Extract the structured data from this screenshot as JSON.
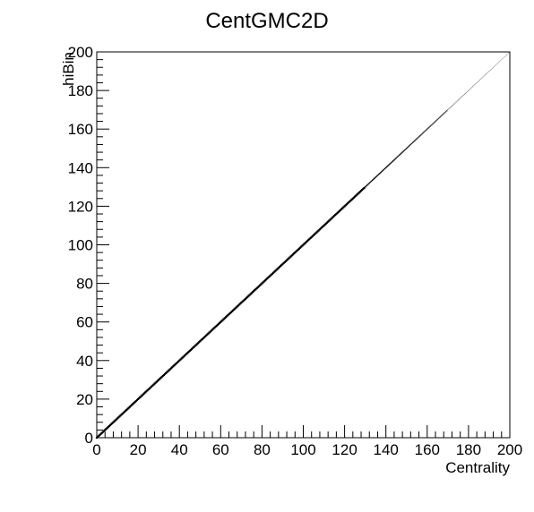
{
  "chart_data": {
    "type": "scatter",
    "title": "CentGMC2D",
    "xlabel": "Centrality",
    "ylabel": "hiBin",
    "xlim": [
      0,
      200
    ],
    "ylim": [
      0,
      200
    ],
    "x_major_ticks": [
      0,
      20,
      40,
      60,
      80,
      100,
      120,
      140,
      160,
      180,
      200
    ],
    "y_major_ticks": [
      0,
      20,
      40,
      60,
      80,
      100,
      120,
      140,
      160,
      180,
      200
    ],
    "x_tick_labels": [
      "0",
      "20",
      "40",
      "60",
      "80",
      "100",
      "120",
      "140",
      "160",
      "180",
      "200"
    ],
    "y_tick_labels": [
      "0",
      "20",
      "40",
      "60",
      "80",
      "100",
      "120",
      "140",
      "160",
      "180",
      "200"
    ],
    "minor_tick_step": 4,
    "grid": false,
    "legend": "none",
    "series": [
      {
        "relation": "y = x",
        "x_range": [
          0,
          200
        ],
        "color": "#000000"
      }
    ]
  }
}
